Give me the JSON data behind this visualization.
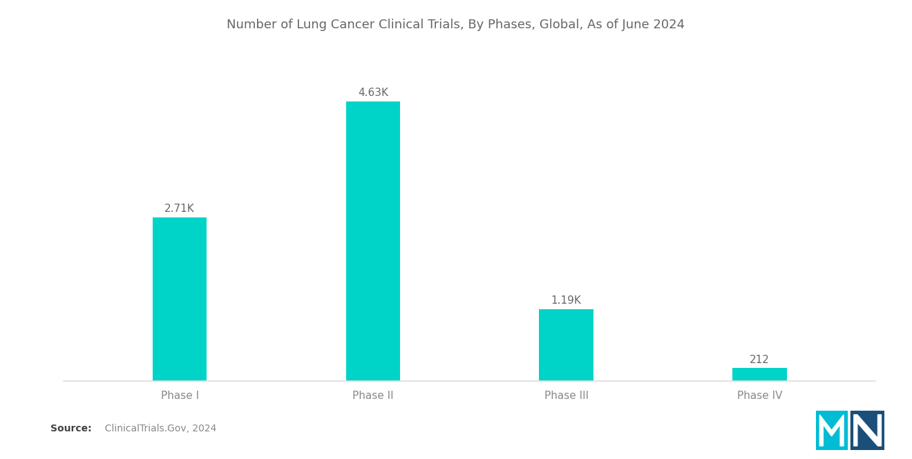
{
  "title": "Number of Lung Cancer Clinical Trials, By Phases, Global, As of June 2024",
  "categories": [
    "Phase I",
    "Phase II",
    "Phase III",
    "Phase IV"
  ],
  "values": [
    2710,
    4630,
    1190,
    212
  ],
  "labels": [
    "2.71K",
    "4.63K",
    "1.19K",
    "212"
  ],
  "bar_color": "#00D4C8",
  "background_color": "#ffffff",
  "title_color": "#666666",
  "label_color": "#666666",
  "tick_color": "#888888",
  "source_bold": "Source:",
  "source_rest": "  ClinicalTrials.Gov, 2024",
  "title_fontsize": 13,
  "label_fontsize": 11,
  "axis_label_fontsize": 11,
  "bar_width": 0.28,
  "ylim": [
    0,
    5400
  ],
  "logo_teal": "#00BCD4",
  "logo_navy": "#1A4F7A"
}
